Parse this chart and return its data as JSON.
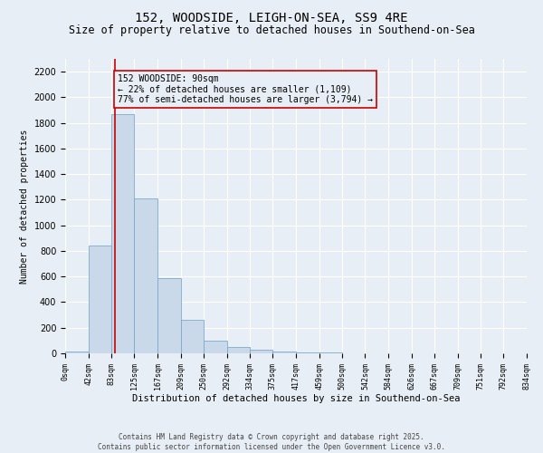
{
  "title": "152, WOODSIDE, LEIGH-ON-SEA, SS9 4RE",
  "subtitle": "Size of property relative to detached houses in Southend-on-Sea",
  "xlabel": "Distribution of detached houses by size in Southend-on-Sea",
  "ylabel": "Number of detached properties",
  "bin_edges": [
    0,
    42,
    83,
    125,
    167,
    209,
    250,
    292,
    334,
    375,
    417,
    459,
    500,
    542,
    584,
    626,
    667,
    709,
    751,
    792,
    834
  ],
  "bin_counts": [
    15,
    840,
    1870,
    1210,
    590,
    265,
    100,
    50,
    30,
    15,
    8,
    5,
    3,
    2,
    0,
    0,
    0,
    0,
    0,
    0
  ],
  "bar_color": "#c9d9ea",
  "bar_edge_color": "#7baacf",
  "bg_color": "#e8eef5",
  "grid_color": "#ffffff",
  "vline_x": 90,
  "vline_color": "#cc0000",
  "annotation_text": "152 WOODSIDE: 90sqm\n← 22% of detached houses are smaller (1,109)\n77% of semi-detached houses are larger (3,794) →",
  "annotation_box_color": "#cc0000",
  "ylim": [
    0,
    2300
  ],
  "yticks": [
    0,
    200,
    400,
    600,
    800,
    1000,
    1200,
    1400,
    1600,
    1800,
    2000,
    2200
  ],
  "footer_text": "Contains HM Land Registry data © Crown copyright and database right 2025.\nContains public sector information licensed under the Open Government Licence v3.0.",
  "title_fontsize": 10,
  "subtitle_fontsize": 8.5,
  "tick_label_fontsize": 6,
  "ylabel_fontsize": 7,
  "xlabel_fontsize": 7.5,
  "annotation_fontsize": 7,
  "footer_fontsize": 5.5,
  "ytick_fontsize": 7
}
